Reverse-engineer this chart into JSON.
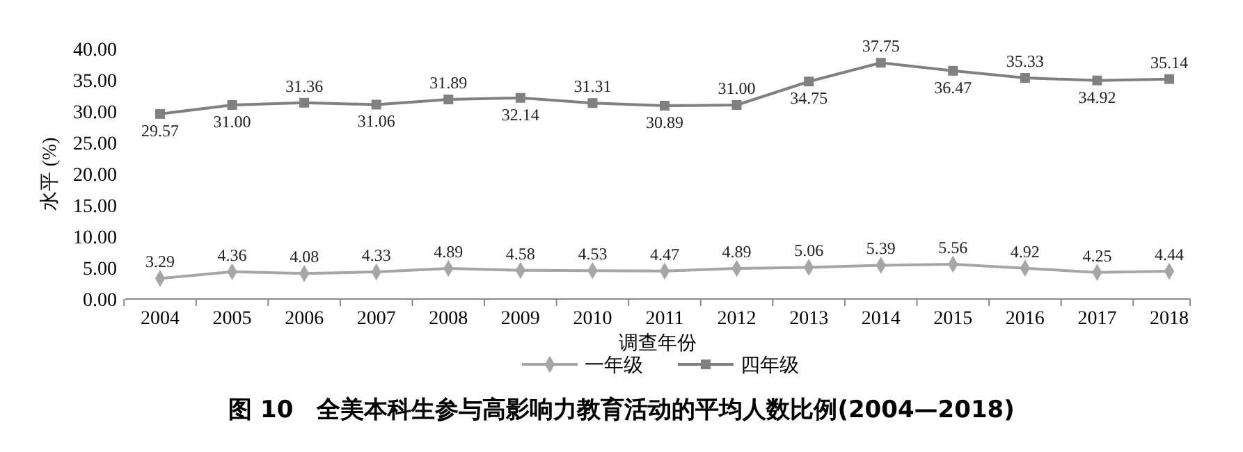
{
  "chart_data": {
    "type": "line",
    "title": "图 10　全美本科生参与高影响力教育活动的平均人数比例(2004—2018)",
    "xlabel": "调查年份",
    "ylabel": "水平 (%)",
    "categories": [
      "2004",
      "2005",
      "2006",
      "2007",
      "2008",
      "2009",
      "2010",
      "2011",
      "2012",
      "2013",
      "2014",
      "2015",
      "2016",
      "2017",
      "2018"
    ],
    "series": [
      {
        "name": "一年级",
        "color": "#a6a6a6",
        "marker": "diamond",
        "values": [
          3.29,
          4.36,
          4.08,
          4.33,
          4.89,
          4.58,
          4.53,
          4.47,
          4.89,
          5.06,
          5.39,
          5.56,
          4.92,
          4.25,
          4.44
        ],
        "value_labels": [
          "3.29",
          "4.36",
          "4.08",
          "4.33",
          "4.89",
          "4.58",
          "4.53",
          "4.47",
          "4.89",
          "5.06",
          "5.39",
          "5.56",
          "4.92",
          "4.25",
          "4.44"
        ]
      },
      {
        "name": "四年级",
        "color": "#808080",
        "marker": "square",
        "values": [
          29.57,
          31.0,
          31.36,
          31.06,
          31.89,
          32.14,
          31.31,
          30.89,
          31.0,
          34.75,
          37.75,
          36.47,
          35.33,
          34.92,
          35.14
        ],
        "value_labels": [
          "29.57",
          "31.00",
          "31.36",
          "31.06",
          "31.89",
          "32.14",
          "31.31",
          "30.89",
          "31.00",
          "34.75",
          "37.75",
          "36.47",
          "35.33",
          "34.92",
          "35.14"
        ]
      }
    ],
    "ylim": [
      0,
      40
    ],
    "yticks": [
      {
        "value": 0,
        "label": "0.00"
      },
      {
        "value": 5,
        "label": "5.00"
      },
      {
        "value": 10,
        "label": "10.00"
      },
      {
        "value": 15,
        "label": "15.00"
      },
      {
        "value": 20,
        "label": "20.00"
      },
      {
        "value": 25,
        "label": "25.00"
      },
      {
        "value": 30,
        "label": "30.00"
      },
      {
        "value": 35,
        "label": "35.00"
      },
      {
        "value": 40,
        "label": "40.00"
      }
    ],
    "grid": false,
    "legend": "bottom"
  }
}
